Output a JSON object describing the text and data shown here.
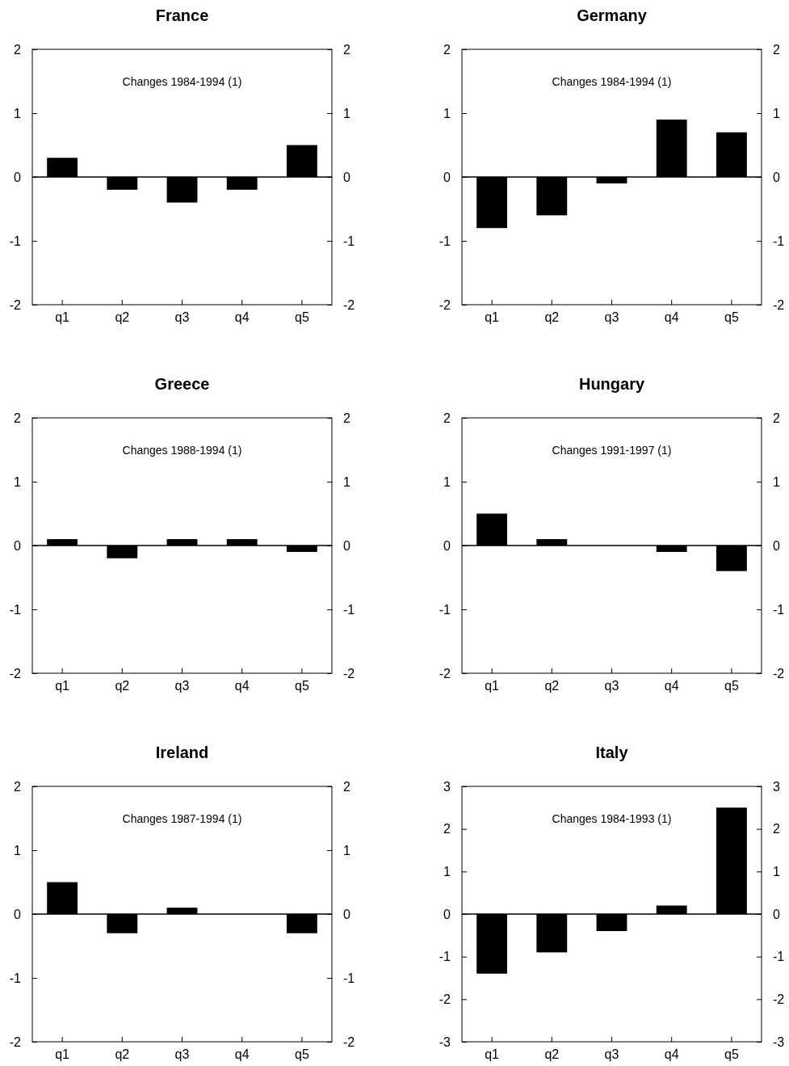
{
  "chart_data": [
    {
      "type": "bar",
      "title": "France",
      "annotations": [
        "Changes 1984-1994 (1)"
      ],
      "categories": [
        "q1",
        "q2",
        "q3",
        "q4",
        "q5"
      ],
      "values": [
        0.3,
        -0.2,
        -0.4,
        -0.2,
        0.5
      ],
      "color": "#000000",
      "ylim": [
        -2,
        2
      ],
      "yticks": [
        -2,
        -1,
        0,
        1,
        2
      ],
      "y2lim": [
        -2,
        2
      ],
      "y2ticks": [
        -2,
        -1,
        0,
        1,
        2
      ]
    },
    {
      "type": "bar",
      "title": "Germany",
      "annotations": [
        "Changes 1984-1994 (1)"
      ],
      "categories": [
        "q1",
        "q2",
        "q3",
        "q4",
        "q5"
      ],
      "values": [
        -0.8,
        -0.6,
        -0.1,
        0.9,
        0.7
      ],
      "color": "#000000",
      "ylim": [
        -2,
        2
      ],
      "yticks": [
        -2,
        -1,
        0,
        1,
        2
      ],
      "y2lim": [
        -2,
        2
      ],
      "y2ticks": [
        -2,
        -1,
        0,
        1,
        2
      ]
    },
    {
      "type": "bar",
      "title": "Greece",
      "annotations": [
        "Changes 1988-1994 (1)"
      ],
      "categories": [
        "q1",
        "q2",
        "q3",
        "q4",
        "q5"
      ],
      "values": [
        0.1,
        -0.2,
        0.1,
        0.1,
        -0.1
      ],
      "color": "#000000",
      "ylim": [
        -2,
        2
      ],
      "yticks": [
        -2,
        -1,
        0,
        1,
        2
      ],
      "y2lim": [
        -2,
        2
      ],
      "y2ticks": [
        -2,
        -1,
        0,
        1,
        2
      ]
    },
    {
      "type": "bar",
      "title": "Hungary",
      "annotations": [
        "Changes 1991-1997 (1)"
      ],
      "categories": [
        "q1",
        "q2",
        "q3",
        "q4",
        "q5"
      ],
      "values": [
        0.5,
        0.1,
        0,
        -0.1,
        -0.4
      ],
      "color": "#000000",
      "ylim": [
        -2,
        2
      ],
      "yticks": [
        -2,
        -1,
        0,
        1,
        2
      ],
      "y2lim": [
        -2,
        2
      ],
      "y2ticks": [
        -2,
        -1,
        0,
        1,
        2
      ]
    },
    {
      "type": "bar",
      "title": "Ireland",
      "annotations": [
        "Changes 1987-1994 (1)"
      ],
      "categories": [
        "q1",
        "q2",
        "q3",
        "q4",
        "q5"
      ],
      "values": [
        0.5,
        -0.3,
        0.1,
        0,
        -0.3
      ],
      "color": "#000000",
      "ylim": [
        -2,
        2
      ],
      "yticks": [
        -2,
        -1,
        0,
        1,
        2
      ],
      "y2lim": [
        -2,
        2
      ],
      "y2ticks": [
        -2,
        -1,
        0,
        1,
        2
      ]
    },
    {
      "type": "bar",
      "title": "Italy",
      "annotations": [
        "Changes 1984-1993 (1)"
      ],
      "categories": [
        "q1",
        "q2",
        "q3",
        "q4",
        "q5"
      ],
      "values": [
        -1.4,
        -0.9,
        -0.4,
        0.2,
        2.5
      ],
      "color": "#000000",
      "ylim": [
        -3,
        3
      ],
      "yticks": [
        -3,
        -2,
        -1,
        0,
        1,
        2,
        3
      ],
      "y2lim": [
        -3,
        3
      ],
      "y2ticks": [
        -3,
        -2,
        -1,
        0,
        1,
        2,
        3
      ]
    }
  ]
}
